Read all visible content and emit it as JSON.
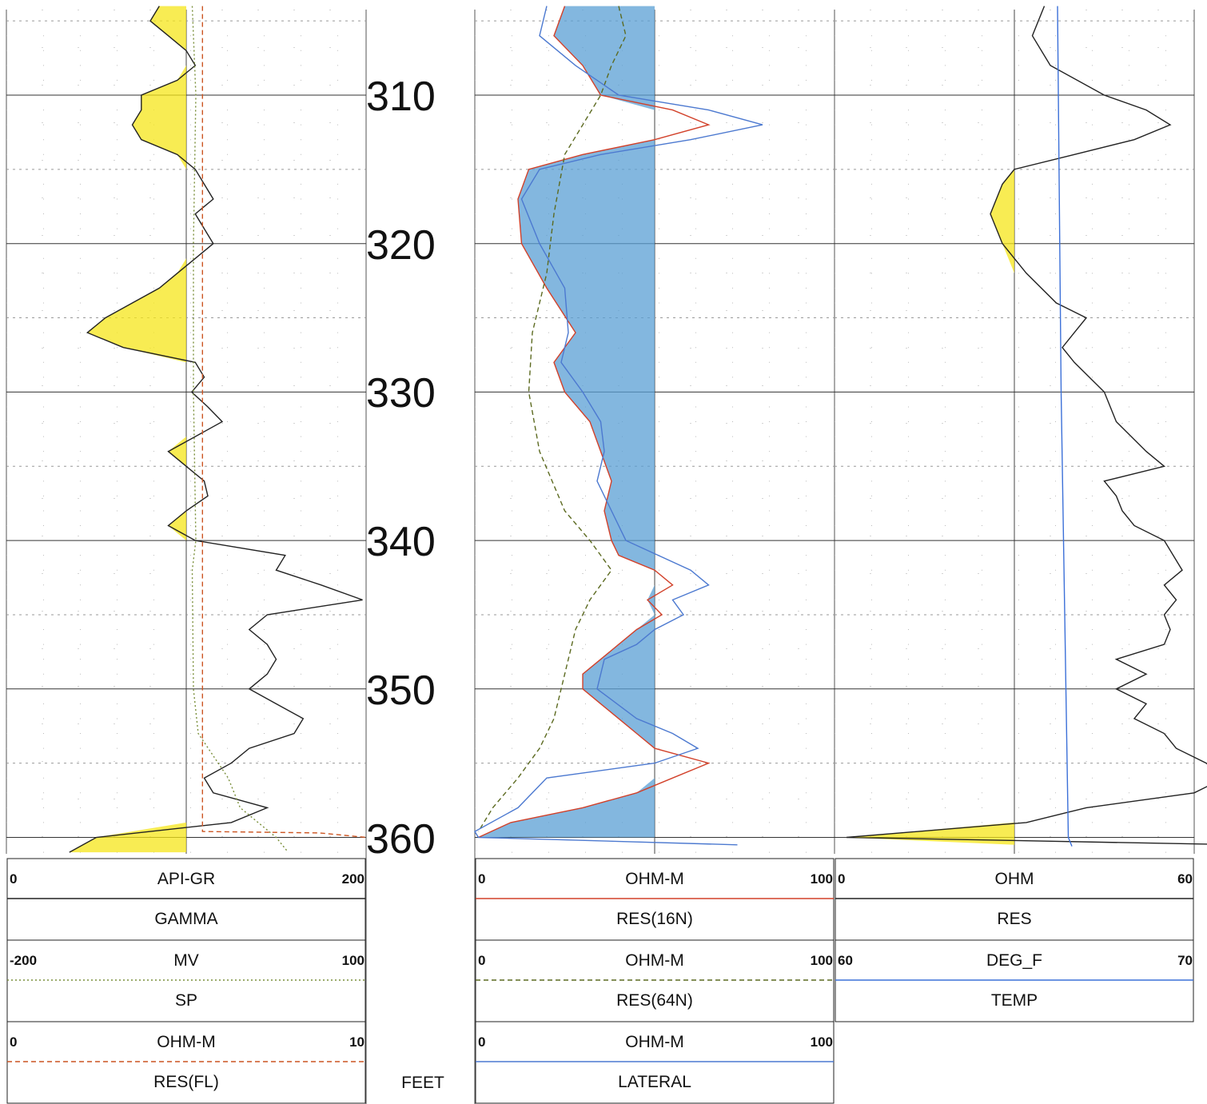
{
  "chart_data": {
    "type": "line",
    "title": "",
    "depth_axis": {
      "unit": "FEET",
      "range": [
        304,
        361
      ],
      "labels": [
        "310",
        "320",
        "330",
        "340",
        "350",
        "360"
      ]
    },
    "grid": true,
    "tracks": [
      {
        "id": "track1",
        "curves": [
          {
            "name": "GAMMA",
            "unit": "API-GR",
            "min": "0",
            "max": "200",
            "scale": [
              0,
              200
            ],
            "color": "#222222",
            "style": "solid",
            "shading": "#f5e51a",
            "points": [
              [
                304,
                85
              ],
              [
                305,
                80
              ],
              [
                306,
                90
              ],
              [
                307,
                100
              ],
              [
                308,
                105
              ],
              [
                309,
                95
              ],
              [
                310,
                75
              ],
              [
                311,
                75
              ],
              [
                312,
                70
              ],
              [
                313,
                75
              ],
              [
                314,
                95
              ],
              [
                315,
                105
              ],
              [
                316,
                110
              ],
              [
                317,
                115
              ],
              [
                318,
                105
              ],
              [
                319,
                110
              ],
              [
                320,
                115
              ],
              [
                321,
                105
              ],
              [
                322,
                95
              ],
              [
                323,
                85
              ],
              [
                324,
                70
              ],
              [
                325,
                55
              ],
              [
                326,
                45
              ],
              [
                327,
                65
              ],
              [
                328,
                105
              ],
              [
                329,
                110
              ],
              [
                330,
                103
              ],
              [
                331,
                112
              ],
              [
                332,
                120
              ],
              [
                333,
                105
              ],
              [
                334,
                90
              ],
              [
                335,
                100
              ],
              [
                336,
                110
              ],
              [
                337,
                112
              ],
              [
                338,
                100
              ],
              [
                339,
                90
              ],
              [
                340,
                105
              ],
              [
                341,
                155
              ],
              [
                342,
                150
              ],
              [
                343,
                175
              ],
              [
                344,
                198
              ],
              [
                345,
                145
              ],
              [
                346,
                135
              ],
              [
                347,
                145
              ],
              [
                348,
                150
              ],
              [
                349,
                145
              ],
              [
                350,
                135
              ],
              [
                351,
                150
              ],
              [
                352,
                165
              ],
              [
                353,
                160
              ],
              [
                354,
                135
              ],
              [
                355,
                125
              ],
              [
                356,
                110
              ],
              [
                357,
                115
              ],
              [
                358,
                145
              ],
              [
                359,
                125
              ],
              [
                360,
                50
              ],
              [
                361,
                35
              ]
            ]
          },
          {
            "name": "SP",
            "unit": "MV",
            "min": "-200",
            "max": "100",
            "scale": [
              -200,
              100
            ],
            "color": "#7a8f3a",
            "style": "dotted",
            "points": [
              [
                304,
                -45
              ],
              [
                310,
                -42
              ],
              [
                320,
                -44
              ],
              [
                330,
                -44
              ],
              [
                340,
                -42
              ],
              [
                342,
                -45
              ],
              [
                350,
                -44
              ],
              [
                353,
                -40
              ],
              [
                356,
                -15
              ],
              [
                358,
                -5
              ],
              [
                360,
                25
              ],
              [
                361,
                35
              ]
            ]
          },
          {
            "name": "RES(FL)",
            "unit": "OHM-M",
            "min": "0",
            "max": "10",
            "scale": [
              0,
              10
            ],
            "color": "#cc5522",
            "style": "dashed",
            "points": [
              [
                304,
                5.45
              ],
              [
                330,
                5.45
              ],
              [
                359.6,
                5.45
              ],
              [
                359.7,
                8.7
              ],
              [
                360,
                10
              ]
            ]
          }
        ]
      },
      {
        "id": "track2",
        "curves": [
          {
            "name": "RES(16N)",
            "unit": "OHM-M",
            "min": "0",
            "max": "100",
            "scale": [
              0,
              100
            ],
            "color": "#d2412a",
            "style": "solid",
            "shading": "#5a9fd4",
            "points": [
              [
                304,
                25
              ],
              [
                306,
                22
              ],
              [
                308,
                30
              ],
              [
                310,
                35
              ],
              [
                311,
                55
              ],
              [
                312,
                65
              ],
              [
                313,
                50
              ],
              [
                314,
                30
              ],
              [
                315,
                15
              ],
              [
                317,
                12
              ],
              [
                320,
                13
              ],
              [
                323,
                20
              ],
              [
                326,
                28
              ],
              [
                328,
                22
              ],
              [
                330,
                25
              ],
              [
                332,
                32
              ],
              [
                334,
                35
              ],
              [
                336,
                38
              ],
              [
                338,
                36
              ],
              [
                340,
                38
              ],
              [
                341,
                40
              ],
              [
                342,
                50
              ],
              [
                343,
                55
              ],
              [
                344,
                48
              ],
              [
                345,
                52
              ],
              [
                346,
                45
              ],
              [
                347,
                40
              ],
              [
                348,
                35
              ],
              [
                349,
                30
              ],
              [
                350,
                30
              ],
              [
                351,
                35
              ],
              [
                352,
                40
              ],
              [
                353,
                45
              ],
              [
                354,
                50
              ],
              [
                355,
                65
              ],
              [
                356,
                55
              ],
              [
                357,
                45
              ],
              [
                358,
                30
              ],
              [
                359,
                10
              ],
              [
                360,
                1
              ]
            ]
          },
          {
            "name": "RES(64N)",
            "unit": "OHM-M",
            "min": "0",
            "max": "100",
            "scale": [
              0,
              100
            ],
            "color": "#5c6a20",
            "style": "dashed",
            "points": [
              [
                304,
                40
              ],
              [
                306,
                42
              ],
              [
                308,
                38
              ],
              [
                310,
                35
              ],
              [
                314,
                25
              ],
              [
                318,
                22
              ],
              [
                322,
                20
              ],
              [
                326,
                16
              ],
              [
                330,
                15
              ],
              [
                334,
                18
              ],
              [
                338,
                25
              ],
              [
                340,
                32
              ],
              [
                342,
                38
              ],
              [
                344,
                32
              ],
              [
                346,
                28
              ],
              [
                348,
                26
              ],
              [
                350,
                24
              ],
              [
                352,
                22
              ],
              [
                354,
                18
              ],
              [
                356,
                12
              ],
              [
                358,
                5
              ],
              [
                359.6,
                1
              ]
            ]
          },
          {
            "name": "LATERAL",
            "unit": "OHM-M",
            "min": "0",
            "max": "100",
            "scale": [
              0,
              100
            ],
            "color": "#4c79d0",
            "style": "solid",
            "points": [
              [
                304,
                20
              ],
              [
                306,
                18
              ],
              [
                308,
                28
              ],
              [
                310,
                40
              ],
              [
                311,
                65
              ],
              [
                312,
                80
              ],
              [
                313,
                60
              ],
              [
                314,
                35
              ],
              [
                315,
                18
              ],
              [
                317,
                13
              ],
              [
                320,
                18
              ],
              [
                323,
                25
              ],
              [
                326,
                26
              ],
              [
                328,
                24
              ],
              [
                330,
                30
              ],
              [
                332,
                35
              ],
              [
                334,
                36
              ],
              [
                336,
                34
              ],
              [
                338,
                38
              ],
              [
                340,
                42
              ],
              [
                342,
                60
              ],
              [
                343,
                65
              ],
              [
                344,
                55
              ],
              [
                345,
                58
              ],
              [
                346,
                50
              ],
              [
                347,
                45
              ],
              [
                348,
                36
              ],
              [
                350,
                34
              ],
              [
                352,
                45
              ],
              [
                353,
                55
              ],
              [
                354,
                62
              ],
              [
                355,
                50
              ],
              [
                356,
                20
              ],
              [
                358,
                12
              ],
              [
                359.6,
                0
              ],
              [
                360,
                1
              ],
              [
                360.5,
                73
              ]
            ]
          }
        ]
      },
      {
        "id": "track3",
        "curves": [
          {
            "name": "RES",
            "unit": "OHM",
            "min": "0",
            "max": "60",
            "scale": [
              0,
              60
            ],
            "color": "#222222",
            "style": "solid",
            "shading": "#f5e51a",
            "points": [
              [
                304,
                35
              ],
              [
                306,
                33
              ],
              [
                308,
                36
              ],
              [
                310,
                45
              ],
              [
                311,
                52
              ],
              [
                312,
                56
              ],
              [
                313,
                50
              ],
              [
                314,
                40
              ],
              [
                315,
                30
              ],
              [
                316,
                28
              ],
              [
                318,
                26
              ],
              [
                320,
                28
              ],
              [
                322,
                32
              ],
              [
                324,
                37
              ],
              [
                325,
                42
              ],
              [
                326,
                40
              ],
              [
                327,
                38
              ],
              [
                328,
                40
              ],
              [
                330,
                45
              ],
              [
                332,
                47
              ],
              [
                334,
                52
              ],
              [
                335,
                55
              ],
              [
                336,
                45
              ],
              [
                337,
                47
              ],
              [
                338,
                48
              ],
              [
                339,
                50
              ],
              [
                340,
                55
              ],
              [
                342,
                58
              ],
              [
                343,
                55
              ],
              [
                344,
                57
              ],
              [
                345,
                55
              ],
              [
                346,
                56
              ],
              [
                347,
                55
              ],
              [
                348,
                47
              ],
              [
                349,
                52
              ],
              [
                350,
                47
              ],
              [
                351,
                52
              ],
              [
                352,
                50
              ],
              [
                353,
                55
              ],
              [
                354,
                57
              ],
              [
                355,
                62
              ],
              [
                356,
                65
              ],
              [
                357,
                60
              ],
              [
                358,
                42
              ],
              [
                359,
                32
              ],
              [
                360,
                2
              ],
              [
                360.5,
                68
              ]
            ]
          },
          {
            "name": "TEMP",
            "unit": "DEG_F",
            "min": "60",
            "max": "70",
            "scale": [
              60,
              70
            ],
            "color": "#3c70d8",
            "style": "solid",
            "points": [
              [
                304,
                66.2
              ],
              [
                330,
                66.3
              ],
              [
                360,
                66.5
              ],
              [
                360.6,
                66.6
              ]
            ]
          }
        ]
      }
    ],
    "header_columns": {
      "depth": "FEET"
    }
  }
}
